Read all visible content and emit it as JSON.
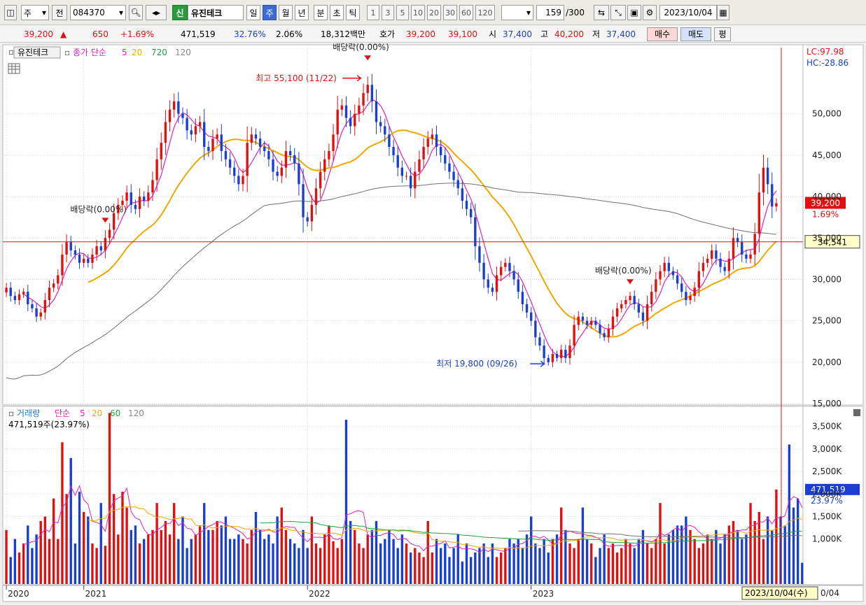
{
  "toolbar": {
    "market": "주",
    "prev_label": "전",
    "code": "084370",
    "new_badge": "신",
    "stock_name": "유진테크",
    "periods": [
      "일",
      "주",
      "월",
      "년",
      "분",
      "초",
      "틱"
    ],
    "active_period": "주",
    "intervals": [
      "1",
      "3",
      "5",
      "10",
      "20",
      "30",
      "60",
      "120"
    ],
    "count": "159",
    "count_total": "/300",
    "date": "2023/10/04"
  },
  "info": {
    "price": "39,200",
    "change": "650",
    "change_pct": "+1.69%",
    "volume": "471,519",
    "turnover_pct": "32.76%",
    "ratio2": "2.06%",
    "amount": "18,312백만",
    "hoga_label": "호가",
    "ask": "39,200",
    "bid": "39,100",
    "open_label": "시",
    "open": "37,400",
    "high_label": "고",
    "high": "40,200",
    "low_label": "저",
    "low": "37,400",
    "buy_label": "매수",
    "sell_label": "매도",
    "eval_label": "평"
  },
  "colors": {
    "up": "#e01010",
    "down": "#1a3fd0",
    "ma5": "#e020c0",
    "ma20": "#f0a800",
    "ma120": "#707070",
    "vol_ma60": "#20a040"
  },
  "chart_data": {
    "type": "candlestick",
    "price_panel": {
      "legend": {
        "name": "유진테크",
        "type": "종가 단순",
        "periods": [
          "5",
          "20",
          "720",
          "120"
        ]
      },
      "ylim": [
        15000,
        58000
      ],
      "yticks": [
        "15,000",
        "20,000",
        "25,000",
        "30,000",
        "35,000",
        "40,000",
        "45,000",
        "50,000"
      ],
      "lc_label": "LC:97.98",
      "hc_label": "HC:-28.86",
      "current_price": "39,200",
      "current_change": "1.69%",
      "crosshair_value": "34,541",
      "annotations": [
        {
          "text": "최고 55,100 (11/22)"
        },
        {
          "text": "최저 19,800 (09/26)"
        },
        {
          "text": "배당락(0.00%)"
        },
        {
          "text": "배당락(0.00%)"
        },
        {
          "text": "배당락(0.00%)"
        }
      ],
      "series": [
        {
          "name": "close",
          "values": [
            29000,
            28000,
            27500,
            28200,
            28500,
            27000,
            26500,
            25500,
            26000,
            27500,
            29000,
            29500,
            30500,
            33000,
            34500,
            33500,
            33000,
            32000,
            32500,
            32000,
            33000,
            34000,
            33500,
            35000,
            36000,
            38000,
            39000,
            39500,
            40500,
            39000,
            38500,
            40000,
            39500,
            40500,
            42000,
            44500,
            46500,
            49000,
            50500,
            51500,
            50000,
            49500,
            48000,
            47500,
            48500,
            49000,
            46000,
            45500,
            47000,
            47500,
            45500,
            44500,
            43500,
            42500,
            41500,
            42500,
            46500,
            47500,
            47000,
            46000,
            45500,
            44500,
            43000,
            42500,
            43500,
            45500,
            45000,
            44000,
            41500,
            37500,
            37000,
            39000,
            41000,
            43000,
            44500,
            45500,
            47500,
            50500,
            51000,
            49500,
            48500,
            50000,
            51000,
            52500,
            53500,
            51500,
            49000,
            48500,
            47500,
            46000,
            45000,
            43500,
            42500,
            42500,
            41000,
            43000,
            44500,
            46000,
            47000,
            47500,
            46000,
            45000,
            44000,
            43000,
            42000,
            41000,
            39500,
            38500,
            37500,
            34000,
            32000,
            30000,
            29000,
            28500,
            30500,
            31500,
            32000,
            31000,
            30000,
            28500,
            27000,
            26000,
            25000,
            23000,
            22000,
            20500,
            20000,
            21000,
            20500,
            21500,
            20500,
            22000,
            24500,
            25500,
            25000,
            24500,
            25000,
            24500,
            23500,
            23000,
            24000,
            25500,
            26500,
            27000,
            27500,
            28000,
            27000,
            26000,
            25000,
            27000,
            28500,
            30000,
            31000,
            32000,
            31000,
            30500,
            29500,
            28500,
            27500,
            28000,
            29000,
            31000,
            32000,
            32500,
            33500,
            32500,
            31500,
            31000,
            32500,
            35000,
            34500,
            33000,
            32500,
            33000,
            35500,
            40500,
            43500,
            41500,
            38800,
            39200
          ]
        },
        {
          "name": "MA5",
          "period": 5
        },
        {
          "name": "MA20",
          "period": 20
        },
        {
          "name": "MA120",
          "period": 120
        }
      ]
    },
    "volume_panel": {
      "legend": {
        "name": "거래량",
        "type": "단순",
        "periods": [
          "5",
          "20",
          "60",
          "120"
        ]
      },
      "last_volume_label": "471,519주(23.97%)",
      "ylim": [
        0,
        3900
      ],
      "yticks": [
        "1,000K",
        "1,500K",
        "2,000K",
        "2,500K",
        "3,000K",
        "3,500K"
      ],
      "current_volume": "471,519",
      "current_pct": "23.97%",
      "values": [
        1200,
        600,
        1000,
        700,
        900,
        1300,
        800,
        1100,
        1400,
        1500,
        1000,
        1900,
        1000,
        3150,
        2000,
        2800,
        900,
        2050,
        1600,
        1500,
        900,
        800,
        1800,
        850,
        3800,
        2000,
        1100,
        2050,
        1700,
        1200,
        1300,
        900,
        1000,
        1100,
        1200,
        1800,
        1200,
        1400,
        1100,
        1800,
        1000,
        1500,
        800,
        1000,
        1100,
        1300,
        1800,
        1200,
        1200,
        1400,
        1300,
        1500,
        1000,
        1000,
        1100,
        1000,
        900,
        1200,
        1600,
        1200,
        1000,
        1100,
        900,
        1500,
        1700,
        1200,
        1000,
        900,
        800,
        1200,
        800,
        1500,
        900,
        800,
        1100,
        1300,
        950,
        800,
        1000,
        3650,
        1400,
        1200,
        900,
        800,
        1100,
        1200,
        1400,
        900,
        1000,
        1200,
        1000,
        800,
        1100,
        900,
        700,
        800,
        700,
        600,
        1400,
        700,
        1000,
        800,
        900,
        600,
        800,
        1100,
        500,
        900,
        600,
        700,
        800,
        900,
        600,
        900,
        600,
        700,
        800,
        1000,
        900,
        1000,
        800,
        1100,
        1500,
        900,
        800,
        1000,
        700,
        1000,
        1100,
        1700,
        1200,
        900,
        800,
        1000,
        1700,
        1000,
        900,
        600,
        800,
        1100,
        800,
        900,
        700,
        800,
        1000,
        900,
        800,
        1000,
        1200,
        900,
        800,
        1000,
        1800,
        900,
        1100,
        1200,
        1300,
        1300,
        1500,
        1200,
        1000,
        800,
        900,
        1100,
        1000,
        1200,
        900,
        1100,
        1300,
        1400,
        1200,
        1000,
        1100,
        1800,
        1400,
        1600,
        1000,
        1500,
        1200,
        2100,
        1500,
        1300,
        3100,
        1700,
        1900,
        472
      ],
      "series": [
        {
          "name": "MA5",
          "period": 5
        },
        {
          "name": "MA20",
          "period": 20
        },
        {
          "name": "MA60",
          "period": 60
        },
        {
          "name": "MA120",
          "period": 120
        }
      ]
    },
    "x_axis": {
      "labels": [
        "2020",
        "2021",
        "2022",
        "2023"
      ],
      "label_index": [
        0,
        18,
        70,
        122
      ],
      "current_date": "2023/10/04(수)",
      "right_tail": "0/04"
    }
  }
}
